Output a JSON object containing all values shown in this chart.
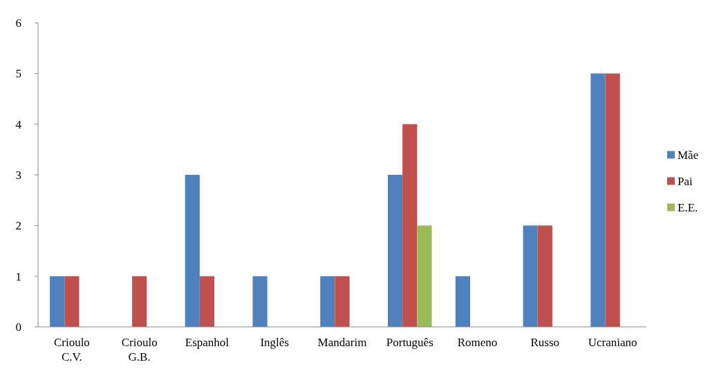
{
  "chart_data": {
    "type": "bar",
    "categories": [
      "Crioulo C.V.",
      "Crioulo G.B.",
      "Espanhol",
      "Inglês",
      "Mandarim",
      "Português",
      "Romeno",
      "Russo",
      "Ucraniano"
    ],
    "series": [
      {
        "name": "Mãe",
        "color": "#4f81bd",
        "values": [
          1,
          0,
          3,
          1,
          1,
          3,
          1,
          2,
          5
        ]
      },
      {
        "name": "Pai",
        "color": "#c0504d",
        "values": [
          1,
          1,
          1,
          0,
          1,
          4,
          0,
          2,
          5
        ]
      },
      {
        "name": "E.E.",
        "color": "#9bbb59",
        "values": [
          0,
          0,
          0,
          0,
          0,
          2,
          0,
          0,
          0
        ]
      }
    ],
    "ylim": [
      0,
      6
    ],
    "yticks": [
      0,
      1,
      2,
      3,
      4,
      5,
      6
    ],
    "grid": false,
    "legend": "right"
  }
}
